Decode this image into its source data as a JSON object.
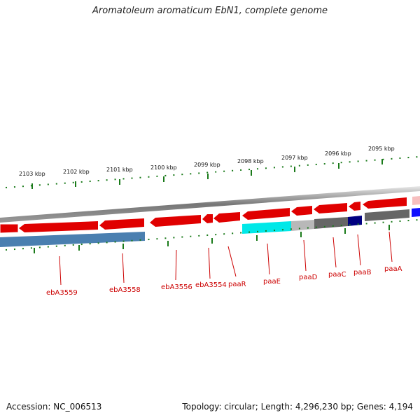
{
  "title": "Aromatoleum aromaticum EbN1, complete genome",
  "footer": {
    "accession": "Accession: NC_006513",
    "summary": "Topology: circular; Length: 4,296,230 bp; Genes: 4,194"
  },
  "ruler_labels": [
    "2103 kbp",
    "2102 kbp",
    "2101 kbp",
    "2100 kbp",
    "2099 kbp",
    "2098 kbp",
    "2097 kbp",
    "2096 kbp",
    "2095 kbp"
  ],
  "gene_labels": [
    "ebA3559",
    "ebA3558",
    "ebA3556",
    "ebA3554",
    "paaR",
    "paaE",
    "paaD",
    "paaC",
    "paaB",
    "paaA"
  ],
  "colors": {
    "gene_red": "#e00000",
    "cog_steelblue": "#4a7fb0",
    "cog_cyan": "#00e8e8",
    "cog_lightgray": "#b8b8b8",
    "cog_darkgray": "#666666",
    "cog_navy": "#000080",
    "cog_blue": "#1010ff",
    "tick_green": "#1a7a1a",
    "label_red": "#cc0000"
  }
}
